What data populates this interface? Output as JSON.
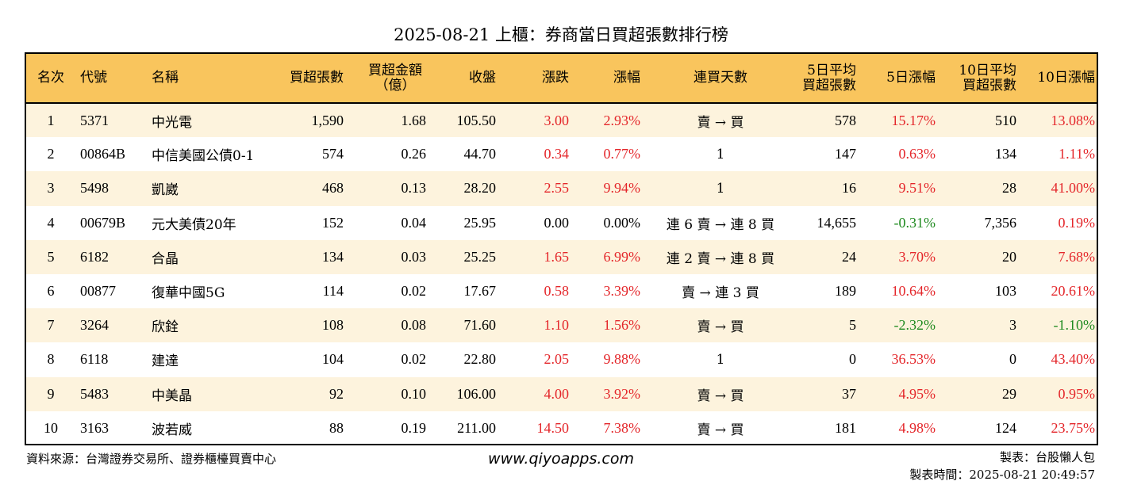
{
  "title": "2025-08-21 上櫃：券商當日買超張數排行榜",
  "colors": {
    "header_bg": "#f9c55d",
    "row_alt_bg": "#fdf3dd",
    "up": "#e4262a",
    "down": "#1f8a1f"
  },
  "headers": {
    "rank": "名次",
    "code": "代號",
    "name": "名稱",
    "net_buy_lots": "買超張數",
    "amount_line1": "買超金額",
    "amount_line2": "（億）",
    "close": "收盤",
    "change": "漲跌",
    "pct": "漲幅",
    "days": "連買天數",
    "avg5_line1": "5日平均",
    "avg5_line2": "買超張數",
    "pct5": "5日漲幅",
    "avg10_line1": "10日平均",
    "avg10_line2": "買超張數",
    "pct10": "10日漲幅"
  },
  "rows": [
    {
      "rank": "1",
      "code": "5371",
      "name": "中光電",
      "net_buy_lots": "1,590",
      "amount": "1.68",
      "close": "105.50",
      "change": "3.00",
      "pct": "2.93%",
      "days": "賣 → 買",
      "avg5": "578",
      "pct5": "15.17%",
      "avg10": "510",
      "pct10": "13.08%"
    },
    {
      "rank": "2",
      "code": "00864B",
      "name": "中信美國公債0-1",
      "net_buy_lots": "574",
      "amount": "0.26",
      "close": "44.70",
      "change": "0.34",
      "pct": "0.77%",
      "days": "1",
      "avg5": "147",
      "pct5": "0.63%",
      "avg10": "134",
      "pct10": "1.11%"
    },
    {
      "rank": "3",
      "code": "5498",
      "name": "凱崴",
      "net_buy_lots": "468",
      "amount": "0.13",
      "close": "28.20",
      "change": "2.55",
      "pct": "9.94%",
      "days": "1",
      "avg5": "16",
      "pct5": "9.51%",
      "avg10": "28",
      "pct10": "41.00%"
    },
    {
      "rank": "4",
      "code": "00679B",
      "name": "元大美債20年",
      "net_buy_lots": "152",
      "amount": "0.04",
      "close": "25.95",
      "change": "0.00",
      "pct": "0.00%",
      "days": "連 6 賣 → 連 8 買",
      "avg5": "14,655",
      "pct5": "-0.31%",
      "avg10": "7,356",
      "pct10": "0.19%"
    },
    {
      "rank": "5",
      "code": "6182",
      "name": "合晶",
      "net_buy_lots": "134",
      "amount": "0.03",
      "close": "25.25",
      "change": "1.65",
      "pct": "6.99%",
      "days": "連 2 賣 → 連 8 買",
      "avg5": "24",
      "pct5": "3.70%",
      "avg10": "20",
      "pct10": "7.68%"
    },
    {
      "rank": "6",
      "code": "00877",
      "name": "復華中國5G",
      "net_buy_lots": "114",
      "amount": "0.02",
      "close": "17.67",
      "change": "0.58",
      "pct": "3.39%",
      "days": "賣 → 連 3 買",
      "avg5": "189",
      "pct5": "10.64%",
      "avg10": "103",
      "pct10": "20.61%"
    },
    {
      "rank": "7",
      "code": "3264",
      "name": "欣銓",
      "net_buy_lots": "108",
      "amount": "0.08",
      "close": "71.60",
      "change": "1.10",
      "pct": "1.56%",
      "days": "賣 → 買",
      "avg5": "5",
      "pct5": "-2.32%",
      "avg10": "3",
      "pct10": "-1.10%"
    },
    {
      "rank": "8",
      "code": "6118",
      "name": "建達",
      "net_buy_lots": "104",
      "amount": "0.02",
      "close": "22.80",
      "change": "2.05",
      "pct": "9.88%",
      "days": "1",
      "avg5": "0",
      "pct5": "36.53%",
      "avg10": "0",
      "pct10": "43.40%"
    },
    {
      "rank": "9",
      "code": "5483",
      "name": "中美晶",
      "net_buy_lots": "92",
      "amount": "0.10",
      "close": "106.00",
      "change": "4.00",
      "pct": "3.92%",
      "days": "賣 → 買",
      "avg5": "37",
      "pct5": "4.95%",
      "avg10": "29",
      "pct10": "0.95%"
    },
    {
      "rank": "10",
      "code": "3163",
      "name": "波若威",
      "net_buy_lots": "88",
      "amount": "0.19",
      "close": "211.00",
      "change": "14.50",
      "pct": "7.38%",
      "days": "賣 → 買",
      "avg5": "181",
      "pct5": "4.98%",
      "avg10": "124",
      "pct10": "23.75%"
    }
  ],
  "footer": {
    "source": "資料來源：台灣證券交易所、證券櫃檯買賣中心",
    "website": "www.qiyoapps.com",
    "author": "製表：台股懶人包",
    "made_time": "製表時間：2025-08-21 20:49:57"
  }
}
